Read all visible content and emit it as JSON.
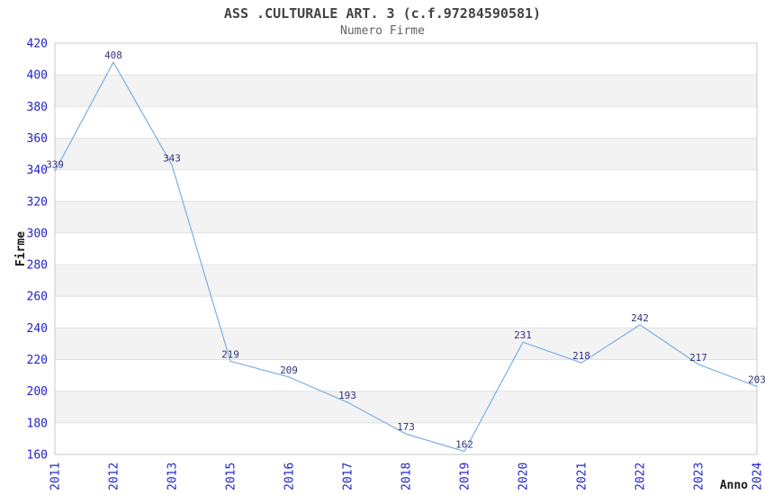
{
  "chart_data": {
    "type": "line",
    "title": "ASS .CULTURALE ART. 3 (c.f.97284590581)",
    "subtitle": "Numero Firme",
    "xlabel": "Anno",
    "ylabel": "Firme",
    "categories": [
      "2011",
      "2012",
      "2013",
      "2015",
      "2016",
      "2017",
      "2018",
      "2019",
      "2020",
      "2021",
      "2022",
      "2023",
      "2024"
    ],
    "series": [
      {
        "name": "Numero Firme",
        "values": [
          339,
          408,
          343,
          219,
          209,
          193,
          173,
          162,
          231,
          218,
          242,
          217,
          203
        ]
      }
    ],
    "ylim": [
      160,
      420
    ],
    "ytick_step": 20,
    "grid": true,
    "banded_background": true,
    "legend_position": "none",
    "colors": {
      "line": "#7fb2e5",
      "tick_label": "#2222cc",
      "value_label": "#33337e",
      "band": "#f3f3f3",
      "gridline": "#e2e2e2",
      "plot_border": "#c9c9c9",
      "title": "#434343",
      "subtitle": "#626262",
      "axis_title": "#1a1a1a",
      "background": "#ffffff"
    }
  }
}
